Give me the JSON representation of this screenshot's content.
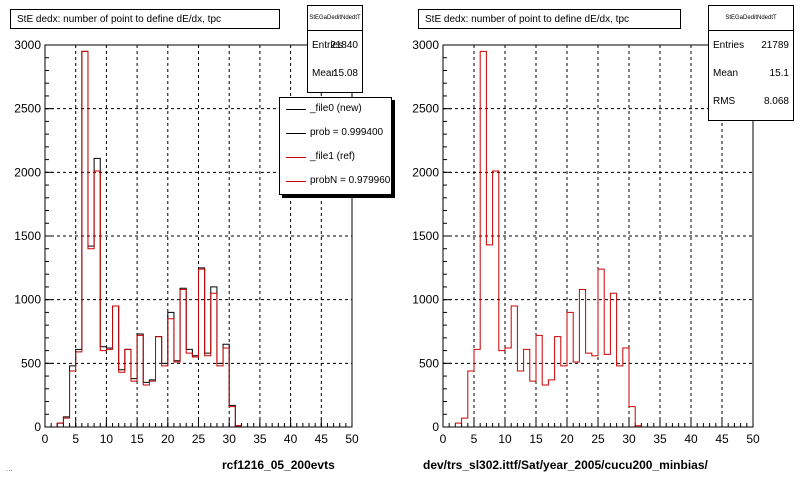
{
  "chart_data": [
    {
      "type": "bar",
      "title": "StE dedx: number of point to define dE/dx, tpc",
      "xlim": [
        0,
        50
      ],
      "ylim": [
        0,
        3000
      ],
      "x_ticks": [
        0,
        5,
        10,
        15,
        20,
        25,
        30,
        35,
        40,
        45,
        50
      ],
      "y_ticks": [
        0,
        500,
        1000,
        1500,
        2000,
        2500,
        3000
      ],
      "grid": true,
      "bin_width": 1,
      "stats": {
        "header": "StEGaDeditNdedtT",
        "entries_label": "Entries",
        "entries": "21840",
        "mean_label": "Mean",
        "mean": "15.08"
      },
      "legend": {
        "placement": "top-right",
        "entries": [
          "_file0 (new)",
          "prob = 0.999400",
          "_file1 (ref)",
          "probN = 0.979960"
        ]
      },
      "footer": "rcf1216_05_200evts",
      "series": [
        {
          "name": "_file0 (new)",
          "color": "#000000",
          "values": [
            0,
            0,
            30,
            80,
            480,
            610,
            2950,
            1420,
            2110,
            630,
            620,
            950,
            450,
            610,
            380,
            730,
            350,
            370,
            710,
            500,
            900,
            520,
            1090,
            610,
            560,
            1250,
            580,
            1100,
            500,
            650,
            170,
            10,
            0,
            0,
            0,
            0,
            0,
            0,
            0,
            0,
            0,
            0,
            0,
            0,
            0,
            0,
            0,
            0,
            0,
            0
          ]
        },
        {
          "name": "_file1 (ref)",
          "color": "#cc0000",
          "values": [
            0,
            0,
            30,
            70,
            440,
            590,
            2950,
            1400,
            2010,
            600,
            610,
            950,
            430,
            610,
            360,
            720,
            330,
            360,
            710,
            480,
            850,
            510,
            1080,
            580,
            550,
            1240,
            560,
            1050,
            480,
            620,
            160,
            10,
            0,
            0,
            0,
            0,
            0,
            0,
            0,
            0,
            0,
            0,
            0,
            0,
            0,
            0,
            0,
            0,
            0,
            0
          ]
        }
      ]
    },
    {
      "type": "bar",
      "title": "StE dedx: number of point to define dE/dx, tpc",
      "xlim": [
        0,
        50
      ],
      "ylim": [
        0,
        3000
      ],
      "x_ticks": [
        0,
        5,
        10,
        15,
        20,
        25,
        30,
        35,
        40,
        45,
        50
      ],
      "y_ticks": [
        0,
        500,
        1000,
        1500,
        2000,
        2500,
        3000
      ],
      "grid": true,
      "bin_width": 1,
      "stats": {
        "header": "StEGaDeditNdedtT",
        "entries_label": "Entries",
        "entries": "21789",
        "mean_label": "Mean",
        "mean": "15.1",
        "rms_label": "RMS",
        "rms": "8.068"
      },
      "footer": "dev/trs_sl302.ittf/Sat/year_2005/cucu200_minbias/",
      "series": [
        {
          "color": "#cc0000",
          "values": [
            0,
            0,
            30,
            70,
            440,
            610,
            2950,
            1430,
            2010,
            600,
            620,
            950,
            440,
            610,
            360,
            720,
            330,
            370,
            710,
            480,
            900,
            510,
            1080,
            580,
            560,
            1240,
            570,
            1050,
            480,
            620,
            160,
            10,
            0,
            0,
            0,
            0,
            0,
            0,
            0,
            0,
            0,
            0,
            0,
            0,
            0,
            0,
            0,
            0,
            0,
            0
          ]
        }
      ]
    }
  ],
  "timestamp_text": "..."
}
